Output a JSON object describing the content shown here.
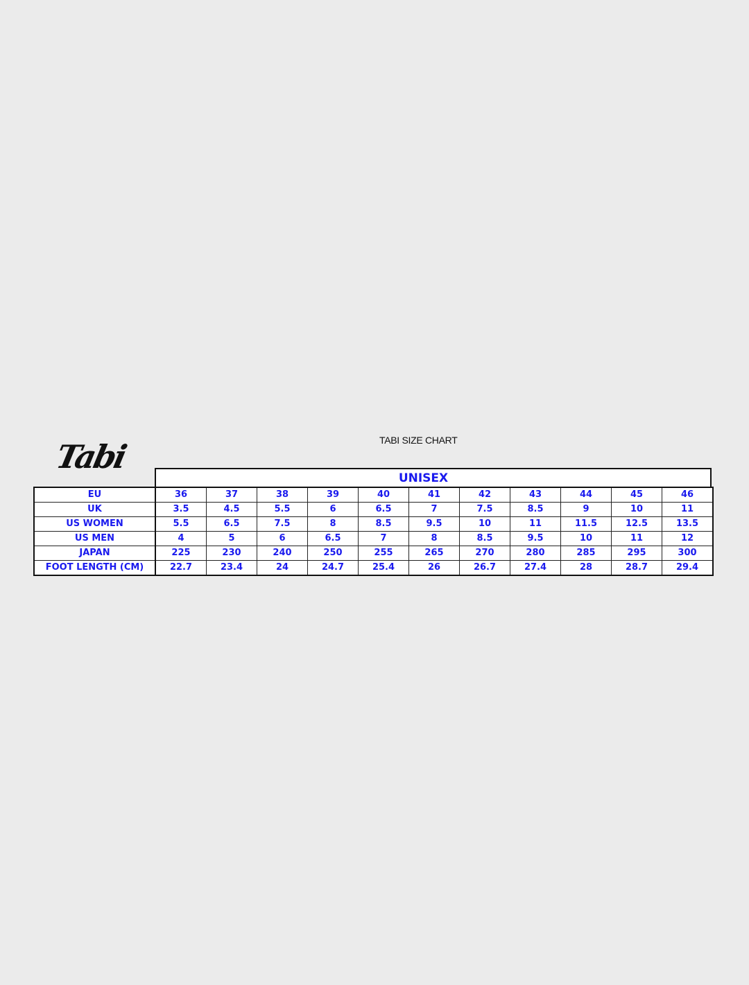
{
  "title": "TABI SIZE CHART",
  "logo_text": "Tabi",
  "group_header": "UNISEX",
  "rows": [
    {
      "label": "EU",
      "values": [
        "36",
        "37",
        "38",
        "39",
        "40",
        "41",
        "42",
        "43",
        "44",
        "45",
        "46"
      ]
    },
    {
      "label": "UK",
      "values": [
        "3.5",
        "4.5",
        "5.5",
        "6",
        "6.5",
        "7",
        "7.5",
        "8.5",
        "9",
        "10",
        "11"
      ]
    },
    {
      "label": "US WOMEN",
      "values": [
        "5.5",
        "6.5",
        "7.5",
        "8",
        "8.5",
        "9.5",
        "10",
        "11",
        "11.5",
        "12.5",
        "13.5"
      ]
    },
    {
      "label": "US MEN",
      "values": [
        "4",
        "5",
        "6",
        "6.5",
        "7",
        "8",
        "8.5",
        "9.5",
        "10",
        "11",
        "12"
      ]
    },
    {
      "label": "JAPAN",
      "values": [
        "225",
        "230",
        "240",
        "250",
        "255",
        "265",
        "270",
        "280",
        "285",
        "295",
        "300"
      ]
    },
    {
      "label": "FOOT LENGTH (CM)",
      "values": [
        "22.7",
        "23.4",
        "24",
        "24.7",
        "25.4",
        "26",
        "26.7",
        "27.4",
        "28",
        "28.7",
        "29.4"
      ]
    }
  ],
  "colors": {
    "text_blue": "#1a1aee",
    "border": "#111111",
    "background": "#ebebeb"
  }
}
